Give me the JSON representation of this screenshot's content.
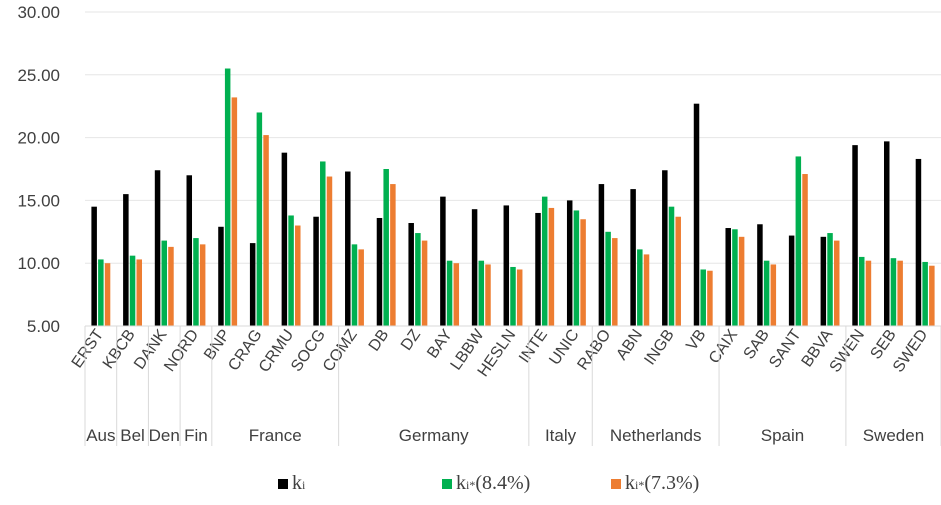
{
  "chart_data": {
    "type": "bar",
    "categories": [
      "ERST",
      "KBCB",
      "DANK",
      "NORD",
      "BNP",
      "CRAG",
      "CRMU",
      "SOCG",
      "COMZ",
      "DB",
      "DZ",
      "BAY",
      "LBBW",
      "HESLN",
      "INTE",
      "UNIC",
      "RABO",
      "ABN",
      "INGB",
      "VB",
      "CAIX",
      "SAB",
      "SANT",
      "BBVA",
      "SWEN",
      "SEB",
      "SWED"
    ],
    "groups": [
      {
        "label": "Aus",
        "count": 1
      },
      {
        "label": "Bel",
        "count": 1
      },
      {
        "label": "Den",
        "count": 1
      },
      {
        "label": "Fin",
        "count": 1
      },
      {
        "label": "France",
        "count": 4
      },
      {
        "label": "Germany",
        "count": 6
      },
      {
        "label": "Italy",
        "count": 2
      },
      {
        "label": "Netherlands",
        "count": 4
      },
      {
        "label": "Spain",
        "count": 4
      },
      {
        "label": "Sweden",
        "count": 3
      }
    ],
    "series": [
      {
        "name_base": "k",
        "name_sub": "i",
        "name_sup": "",
        "name_tail": "",
        "color": "#000000",
        "values": [
          14.5,
          15.5,
          17.4,
          17.0,
          12.9,
          11.6,
          18.8,
          13.7,
          17.3,
          13.6,
          13.2,
          15.3,
          14.3,
          14.6,
          14.0,
          15.0,
          16.3,
          15.9,
          17.4,
          22.7,
          12.8,
          13.1,
          12.2,
          12.1,
          19.4,
          19.7,
          18.3
        ]
      },
      {
        "name_base": "k",
        "name_sub": "i",
        "name_sup": "*",
        "name_tail": "(8.4%)",
        "color": "#00b050",
        "values": [
          10.3,
          10.6,
          11.8,
          12.0,
          25.5,
          22.0,
          13.8,
          18.1,
          11.5,
          17.5,
          12.4,
          10.2,
          10.2,
          9.7,
          15.3,
          14.2,
          12.5,
          11.1,
          14.5,
          9.5,
          12.7,
          10.2,
          18.5,
          12.4,
          10.5,
          10.4,
          10.1
        ]
      },
      {
        "name_base": "k",
        "name_sub": "i",
        "name_sup": "*",
        "name_tail": "(7.3%)",
        "color": "#ed7d31",
        "values": [
          10.0,
          10.3,
          11.3,
          11.5,
          23.2,
          20.2,
          13.0,
          16.9,
          11.1,
          16.3,
          11.8,
          10.0,
          9.9,
          9.5,
          14.4,
          13.5,
          12.0,
          10.7,
          13.7,
          9.4,
          12.1,
          9.9,
          17.1,
          11.8,
          10.2,
          10.2,
          9.8
        ]
      }
    ],
    "yticks": [
      "5.00",
      "10.00",
      "15.00",
      "20.00",
      "25.00",
      "30.00"
    ],
    "ylim": [
      5,
      30
    ],
    "grid": true,
    "legend_position": "bottom"
  }
}
